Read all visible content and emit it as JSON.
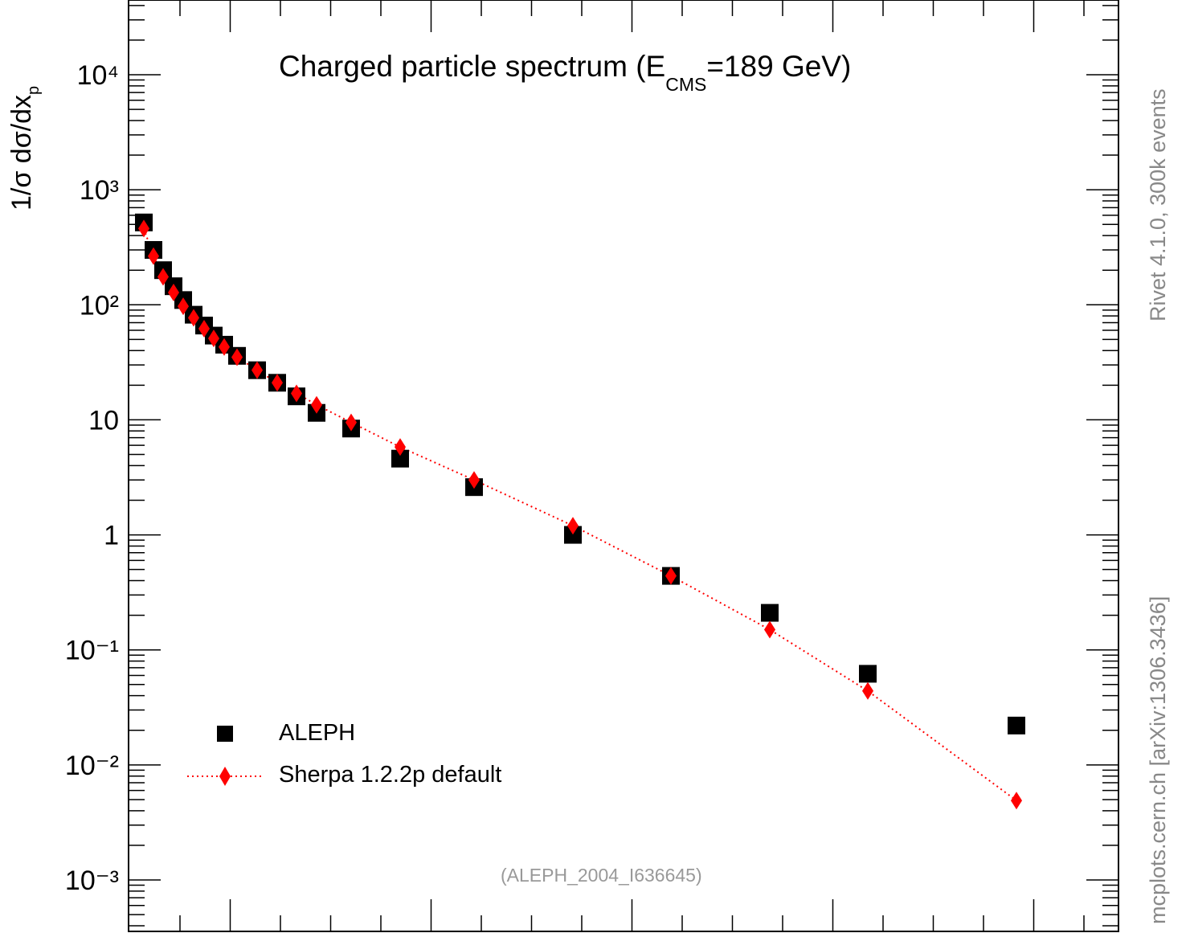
{
  "chart_data": {
    "type": "scatter",
    "title_prefix": "Charged particle spectrum (E",
    "title_subscript": "CMS",
    "title_suffix": "=189 GeV)",
    "ylabel_prefix": "1/σ  dσ/dx",
    "ylabel_subscript": "p",
    "yscale": "log",
    "ylim": [
      0.0003,
      35000
    ],
    "yticks": [
      "10⁴",
      "10³",
      "10²",
      "10",
      "1",
      "10⁻¹",
      "10⁻²",
      "10⁻³"
    ],
    "series": [
      {
        "name": "ALEPH",
        "marker": "square",
        "color": "#000000",
        "values": [
          520,
          300,
          200,
          145,
          110,
          82,
          66,
          54,
          45,
          36,
          27,
          21,
          16,
          11.5,
          8.4,
          4.6,
          2.6,
          1.0,
          0.44,
          0.21,
          0.062,
          0.022
        ]
      },
      {
        "name": "Sherpa 1.2.2p default",
        "marker": "diamond",
        "color": "#ff0000",
        "line": "dotted",
        "values": [
          460,
          265,
          175,
          128,
          97,
          77,
          62,
          51,
          43,
          35,
          27,
          21,
          17,
          13.5,
          9.5,
          5.8,
          3.0,
          1.2,
          0.44,
          0.15,
          0.044,
          0.0049
        ]
      }
    ]
  },
  "side_text_top": "Rivet 4.1.0,  300k events",
  "side_text_bottom": "mcplots.cern.ch [arXiv:1306.3436]",
  "analysis_tag": "(ALEPH_2004_I636645)"
}
